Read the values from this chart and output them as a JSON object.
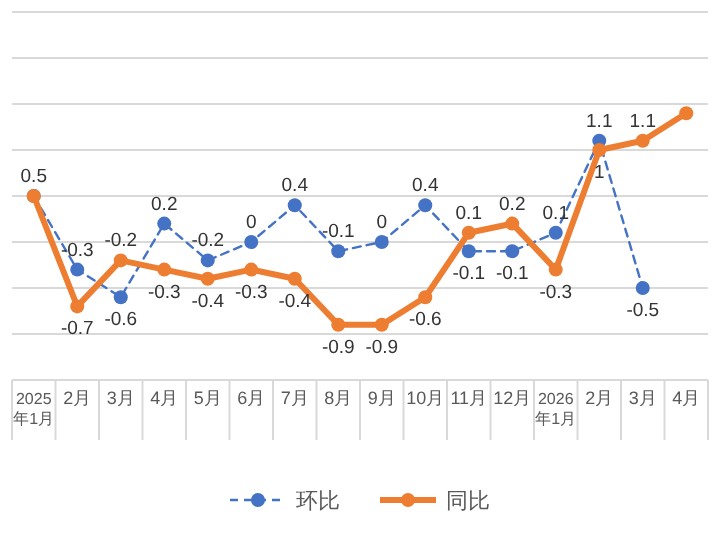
{
  "chart_data": {
    "type": "line",
    "categories": [
      "2025年1月",
      "2月",
      "3月",
      "4月",
      "5月",
      "6月",
      "7月",
      "8月",
      "9月",
      "10月",
      "11月",
      "12月",
      "2026年1月",
      "2月",
      "3月",
      "4月"
    ],
    "series": [
      {
        "name": "环比",
        "color": "#4472c4",
        "line_style": "dashed",
        "marker": "circle",
        "values": [
          0.5,
          -0.3,
          -0.6,
          0.2,
          -0.2,
          0,
          0.4,
          -0.1,
          0,
          0.4,
          -0.1,
          -0.1,
          0.1,
          1.1,
          -0.5,
          null
        ],
        "value_labels": [
          "0.5",
          "-0.3",
          "-0.6",
          "0.2",
          "-0.2",
          "0",
          "0.4",
          "-0.1",
          "0",
          "0.4",
          "-0.1",
          "-0.1",
          "0.1",
          "1.1",
          "-0.5",
          null
        ]
      },
      {
        "name": "同比",
        "color": "#ed7d31",
        "line_style": "solid",
        "marker": "circle",
        "values": [
          0.5,
          -0.7,
          -0.2,
          -0.3,
          -0.4,
          -0.3,
          -0.4,
          -0.9,
          -0.9,
          -0.6,
          0.1,
          0.2,
          -0.3,
          1,
          1.1,
          1.4
        ],
        "value_labels": [
          null,
          "-0.7",
          "-0.2",
          "-0.3",
          "-0.4",
          "-0.3",
          "-0.4",
          "-0.9",
          "-0.9",
          "-0.6",
          "0.1",
          "0.2",
          "-0.3",
          "1",
          "1.1",
          null
        ]
      }
    ],
    "ylim": [
      -1.5,
      2.5
    ],
    "yticks": [
      -1.5,
      -1,
      -0.5,
      0,
      0.5,
      1,
      1.5,
      2,
      2.5
    ],
    "tick_labels": "x",
    "grid": "y",
    "legend": "bottom"
  }
}
